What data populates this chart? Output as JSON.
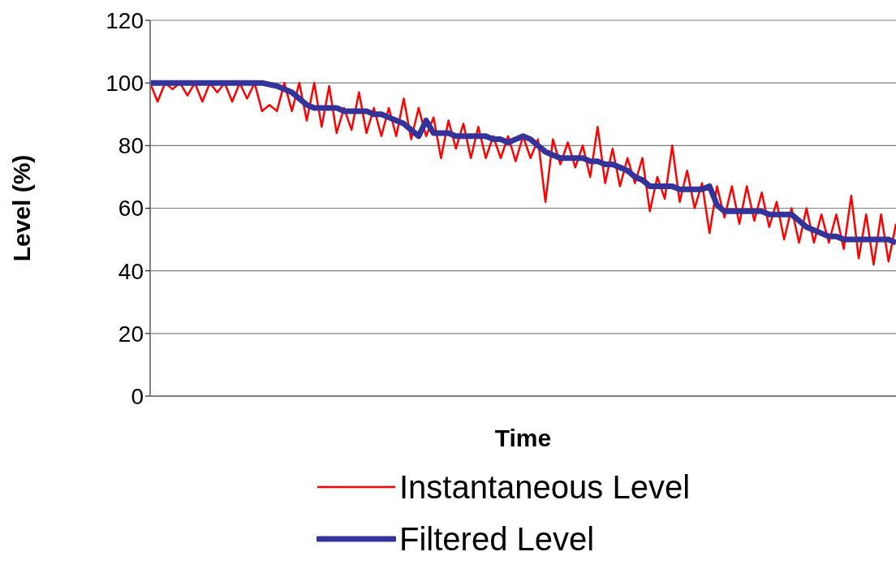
{
  "chart_data": {
    "type": "line",
    "xlabel": "Time",
    "ylabel": "Level (%)",
    "categories": [
      null,
      null,
      null,
      null,
      null,
      null,
      null,
      null,
      null,
      null,
      null,
      null,
      null,
      null,
      null,
      null,
      null,
      null,
      null,
      null,
      null,
      null,
      null,
      null,
      null,
      null,
      null,
      null,
      null,
      null,
      null,
      null,
      null,
      null,
      null,
      null,
      null,
      null,
      null,
      null,
      null,
      null,
      null,
      null,
      null,
      null,
      null,
      null,
      null,
      null,
      null,
      null,
      null,
      null,
      null,
      null,
      null,
      null,
      null,
      null,
      null,
      null,
      null,
      null,
      null,
      null,
      null,
      null,
      null,
      null,
      null,
      null,
      null,
      null,
      null,
      null,
      null,
      null,
      null,
      null,
      null,
      null,
      null,
      null,
      null,
      null,
      null,
      null,
      null,
      null,
      null,
      null,
      null,
      null,
      null,
      null,
      null,
      null,
      null,
      null,
      null
    ],
    "series": [
      {
        "name": "Instantaneous Level",
        "color": "#ff0000",
        "values": [
          100,
          94,
          100,
          98,
          100,
          96,
          100,
          94,
          100,
          97,
          100,
          94,
          100,
          95,
          100,
          91,
          93,
          91,
          100,
          91,
          100,
          88,
          100,
          86,
          99,
          84,
          92,
          85,
          97,
          84,
          92,
          83,
          92,
          83,
          95,
          82,
          92,
          83,
          89,
          76,
          88,
          79,
          87,
          76,
          86,
          76,
          83,
          76,
          83,
          75,
          83,
          76,
          82,
          62,
          82,
          74,
          81,
          73,
          80,
          70,
          86,
          68,
          79,
          67,
          76,
          68,
          76,
          59,
          70,
          63,
          80,
          62,
          72,
          60,
          68,
          52,
          67,
          57,
          67,
          55,
          67,
          56,
          65,
          54,
          62,
          50,
          60,
          49,
          60,
          49,
          58,
          49,
          58,
          47,
          64,
          44,
          58,
          42,
          58,
          43,
          55
        ]
      },
      {
        "name": "Filtered Level",
        "color": "#333399",
        "values": [
          100,
          100,
          100,
          100,
          100,
          100,
          100,
          100,
          100,
          100,
          100,
          100,
          100,
          100,
          100,
          100,
          99.5,
          99,
          98,
          97,
          95,
          93,
          92,
          92,
          92,
          92,
          91,
          91,
          91,
          91,
          90,
          90,
          89,
          88,
          87,
          85,
          83,
          88,
          84,
          84,
          84,
          83,
          83,
          83,
          83,
          83,
          82,
          82,
          81,
          82,
          83,
          82,
          80,
          78,
          77,
          76,
          76,
          76,
          76,
          75,
          75,
          74,
          74,
          73,
          72,
          70,
          69,
          67,
          67,
          67,
          67,
          66,
          66,
          66,
          66,
          67,
          61,
          59,
          59,
          59,
          59,
          59,
          59,
          58,
          58,
          58,
          58,
          56,
          54,
          53,
          52,
          51,
          51,
          50,
          50,
          50,
          50,
          50,
          50,
          50,
          49
        ]
      }
    ],
    "ylim": [
      0,
      120
    ],
    "yticks": [
      0,
      20,
      40,
      60,
      80,
      100,
      120
    ],
    "grid": "y",
    "legend": "bottom",
    "marker": "none",
    "line_style": "solid"
  }
}
